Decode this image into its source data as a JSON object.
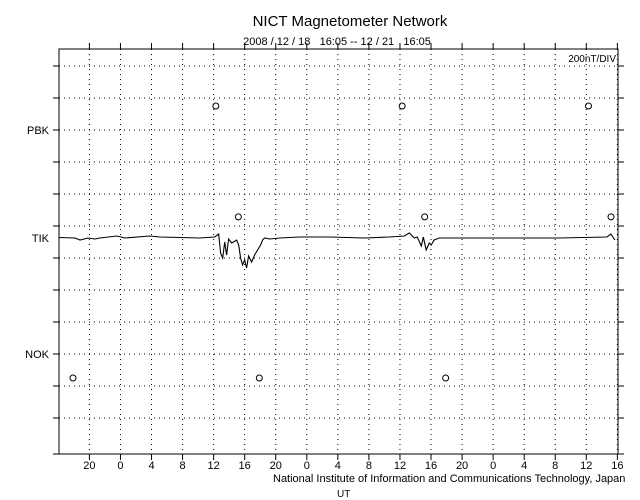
{
  "chart_data": {
    "type": "line",
    "title": "NICT Magnetometer Network",
    "subtitle": "2008 / 12 / 18   16:05 -- 12 / 21   16:05",
    "scale_label": "200nT/DIV",
    "xlabel": "UT",
    "x_range_hours": [
      0,
      72
    ],
    "start_hour_of_day": 16.0833,
    "nT_per_div": 200,
    "x_tick_labels": [
      "20",
      "0",
      "4",
      "8",
      "12",
      "16",
      "20",
      "0",
      "4",
      "8",
      "12",
      "16",
      "20",
      "0",
      "4",
      "8",
      "12",
      "16"
    ],
    "stations": [
      {
        "name": "PBK",
        "div_index": 2,
        "markers_hours": [
          20.2,
          44.2,
          68.2
        ],
        "marker_offset_divs": 0.75
      },
      {
        "name": "TIK",
        "div_index": 5.5,
        "markers_hours": [
          23.1,
          47.1,
          71.1
        ],
        "marker_offset_divs": 0.66
      },
      {
        "name": "NOK",
        "div_index": 9,
        "markers_hours": [
          1.8,
          25.8,
          49.8
        ],
        "marker_offset_divs": -0.75
      }
    ],
    "series": [
      {
        "name": "TIK",
        "points": [
          [
            0,
            3
          ],
          [
            2.06,
            0
          ],
          [
            2.7,
            -12.5
          ],
          [
            3.73,
            0
          ],
          [
            4.63,
            -6
          ],
          [
            5.27,
            0
          ],
          [
            7.46,
            12.5
          ],
          [
            8.48,
            0
          ],
          [
            11.7,
            12.5
          ],
          [
            12.98,
            6
          ],
          [
            18.12,
            0
          ],
          [
            20.05,
            6
          ],
          [
            20.57,
            25
          ],
          [
            20.82,
            -94
          ],
          [
            21.08,
            -125
          ],
          [
            21.34,
            -25
          ],
          [
            21.59,
            -106
          ],
          [
            21.85,
            -6
          ],
          [
            22.24,
            -31
          ],
          [
            22.88,
            -12.5
          ],
          [
            23.14,
            -44
          ],
          [
            23.39,
            -125
          ],
          [
            23.65,
            -169
          ],
          [
            23.91,
            -138
          ],
          [
            24.16,
            -187
          ],
          [
            24.42,
            -112
          ],
          [
            24.81,
            -150
          ],
          [
            25.19,
            -106
          ],
          [
            25.58,
            -75
          ],
          [
            25.96,
            -44
          ],
          [
            26.22,
            -12.5
          ],
          [
            26.48,
            0
          ],
          [
            27.12,
            -6
          ],
          [
            28.41,
            0
          ],
          [
            30.98,
            6
          ],
          [
            34.83,
            6
          ],
          [
            39.33,
            0
          ],
          [
            42.54,
            6
          ],
          [
            44.47,
            12.5
          ],
          [
            45.12,
            31
          ],
          [
            45.76,
            0
          ],
          [
            46.14,
            6
          ],
          [
            46.66,
            -50
          ],
          [
            46.92,
            6
          ],
          [
            47.3,
            -75
          ],
          [
            47.69,
            -31
          ],
          [
            47.94,
            -44
          ],
          [
            48.33,
            -12.5
          ],
          [
            48.97,
            0
          ],
          [
            56.68,
            0
          ],
          [
            64.4,
            0
          ],
          [
            70.57,
            6
          ],
          [
            71.08,
            25
          ],
          [
            71.6,
            -12.5
          ]
        ]
      }
    ],
    "grid": true
  },
  "footer": "National Institute of Information and Communications Technology, Japan"
}
